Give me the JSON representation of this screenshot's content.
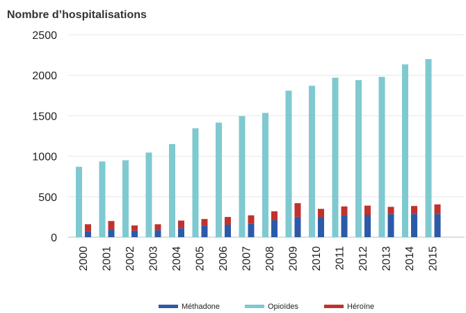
{
  "chart_data": {
    "type": "bar",
    "title": "",
    "ylabel": "Nombre d’hospitalisations",
    "xlabel": "",
    "ylim": [
      0,
      2500
    ],
    "yticks": [
      0,
      500,
      1000,
      1500,
      2000,
      2500
    ],
    "grid": "horizontal",
    "legend_position": "bottom",
    "categories": [
      "2000",
      "2001",
      "2002",
      "2003",
      "2004",
      "2005",
      "2006",
      "2007",
      "2008",
      "2009",
      "2010",
      "2011",
      "2012",
      "2013",
      "2014",
      "2015"
    ],
    "series": [
      {
        "name": "Opioïdes",
        "color": "#7fc9d0",
        "values": [
          870,
          935,
          950,
          1045,
          1150,
          1345,
          1415,
          1495,
          1535,
          1810,
          1870,
          1970,
          1940,
          1980,
          2135,
          2200
        ]
      },
      {
        "name": "Méthadone",
        "color": "#2c5aa8",
        "values": [
          70,
          95,
          80,
          85,
          110,
          145,
          155,
          165,
          210,
          250,
          245,
          270,
          275,
          285,
          290,
          285
        ]
      },
      {
        "name": "Héroïne",
        "color": "#c0322f",
        "values": [
          90,
          105,
          65,
          75,
          95,
          80,
          95,
          105,
          110,
          170,
          105,
          110,
          115,
          90,
          95,
          120
        ]
      }
    ],
    "stacked_series": [
      "Méthadone",
      "Héroïne"
    ],
    "legend_order": [
      "Méthadone",
      "Opioïdes",
      "Héroïne"
    ]
  }
}
